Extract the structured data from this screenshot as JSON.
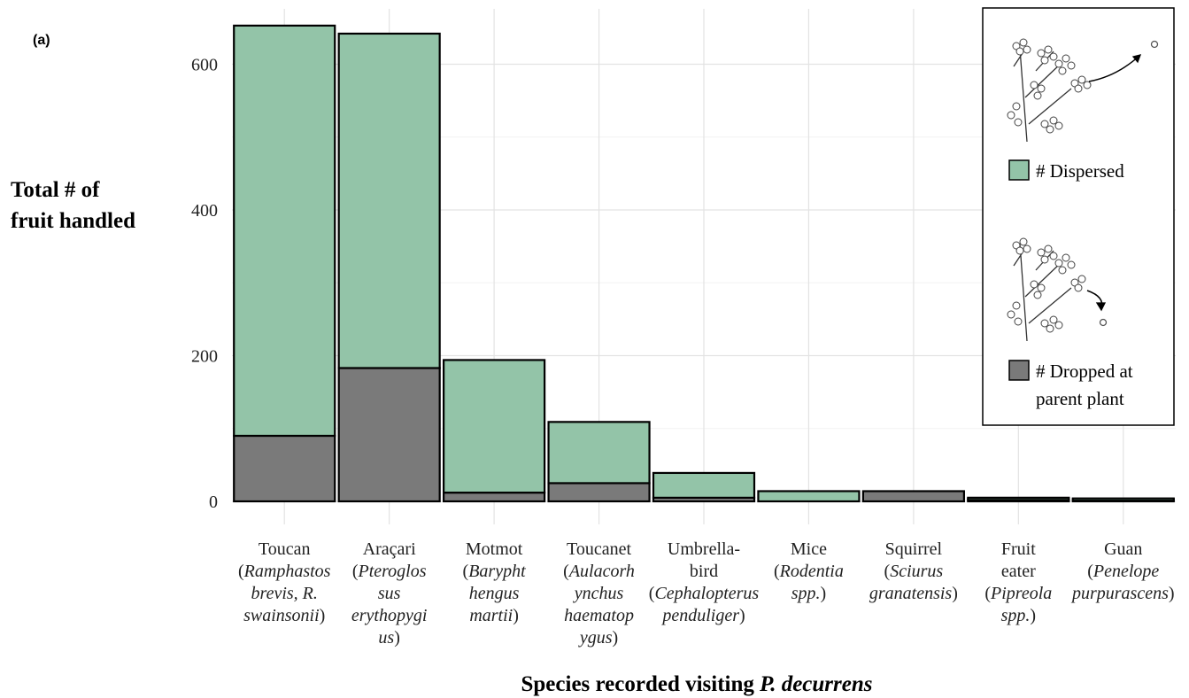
{
  "panel_label": "(a)",
  "chart_data": {
    "type": "bar",
    "stacked": true,
    "xlabel_prefix": "Species recorded visiting ",
    "xlabel_italic": "P. decurrens",
    "ylabel_lines": [
      "Total # of",
      "fruit handled"
    ],
    "ylim": [
      0,
      665
    ],
    "yticks": [
      0,
      200,
      400,
      600
    ],
    "grid": true,
    "categories": [
      {
        "common": [
          "Toucan"
        ],
        "sci": [
          "(Ramphastos",
          "brevis, R.",
          "swainsonii)"
        ]
      },
      {
        "common": [
          "Araçari"
        ],
        "sci": [
          "(Pteroglos",
          "sus",
          "erythopygi",
          "us)"
        ]
      },
      {
        "common": [
          "Motmot"
        ],
        "sci": [
          "(Barypht",
          "hengus",
          "martii)"
        ]
      },
      {
        "common": [
          "Toucanet"
        ],
        "sci": [
          "(Aulacorh",
          "ynchus",
          "haematop",
          "ygus)"
        ]
      },
      {
        "common": [
          "Umbrella-",
          "bird"
        ],
        "sci": [
          "(Cephalopterus",
          "penduliger)"
        ]
      },
      {
        "common": [
          "Mice"
        ],
        "sci": [
          "(Rodentia",
          "spp.)"
        ]
      },
      {
        "common": [
          "Squirrel"
        ],
        "sci": [
          "(Sciurus",
          "granatensis)"
        ]
      },
      {
        "common": [
          "Fruit",
          "eater"
        ],
        "sci": [
          "(Pipreola",
          "spp.)"
        ]
      },
      {
        "common": [
          "Guan"
        ],
        "sci": [
          "(Penelope",
          "purpurascens)"
        ]
      }
    ],
    "series": [
      {
        "name": "# Dropped at parent plant",
        "color": "#7a7a7a",
        "values": [
          90,
          183,
          12,
          25,
          5,
          0,
          14,
          2,
          1
        ]
      },
      {
        "name": "# Dispersed",
        "color": "#93c4a8",
        "values": [
          563,
          459,
          182,
          84,
          34,
          14,
          0,
          1,
          1
        ]
      }
    ],
    "legend": {
      "position": "top-right",
      "dispersed_label": "# Dispersed",
      "dropped_label_lines": [
        "# Dropped at",
        "parent plant"
      ]
    }
  }
}
